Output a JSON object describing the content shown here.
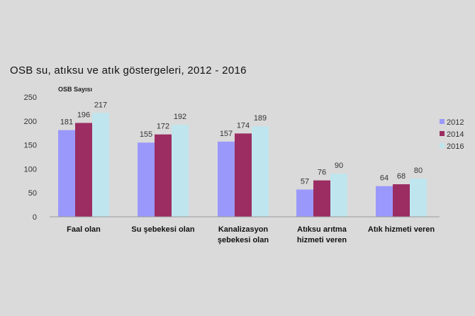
{
  "chart_data": {
    "type": "bar",
    "title": "OSB su, atıksu ve atık göstergeleri, 2012 - 2016",
    "ylabel": "OSB Sayısı",
    "xlabel": "",
    "ylim": [
      0,
      250
    ],
    "yticks": [
      0,
      50,
      100,
      150,
      200,
      250
    ],
    "grid": false,
    "legend_position": "right",
    "categories": [
      [
        "Faal olan"
      ],
      [
        "Su şebekesi olan"
      ],
      [
        "Kanalizasyon",
        "şebekesi olan"
      ],
      [
        "Atıksu arıtma",
        "hizmeti veren"
      ],
      [
        "Atık hizmeti veren"
      ]
    ],
    "series": [
      {
        "name": "2012",
        "color": "#9a99fb",
        "values": [
          181,
          155,
          157,
          57,
          64
        ]
      },
      {
        "name": "2014",
        "color": "#9b2d62",
        "values": [
          196,
          172,
          174,
          76,
          68
        ]
      },
      {
        "name": "2016",
        "color": "#bfe5ee",
        "values": [
          217,
          192,
          189,
          90,
          80
        ]
      }
    ]
  }
}
